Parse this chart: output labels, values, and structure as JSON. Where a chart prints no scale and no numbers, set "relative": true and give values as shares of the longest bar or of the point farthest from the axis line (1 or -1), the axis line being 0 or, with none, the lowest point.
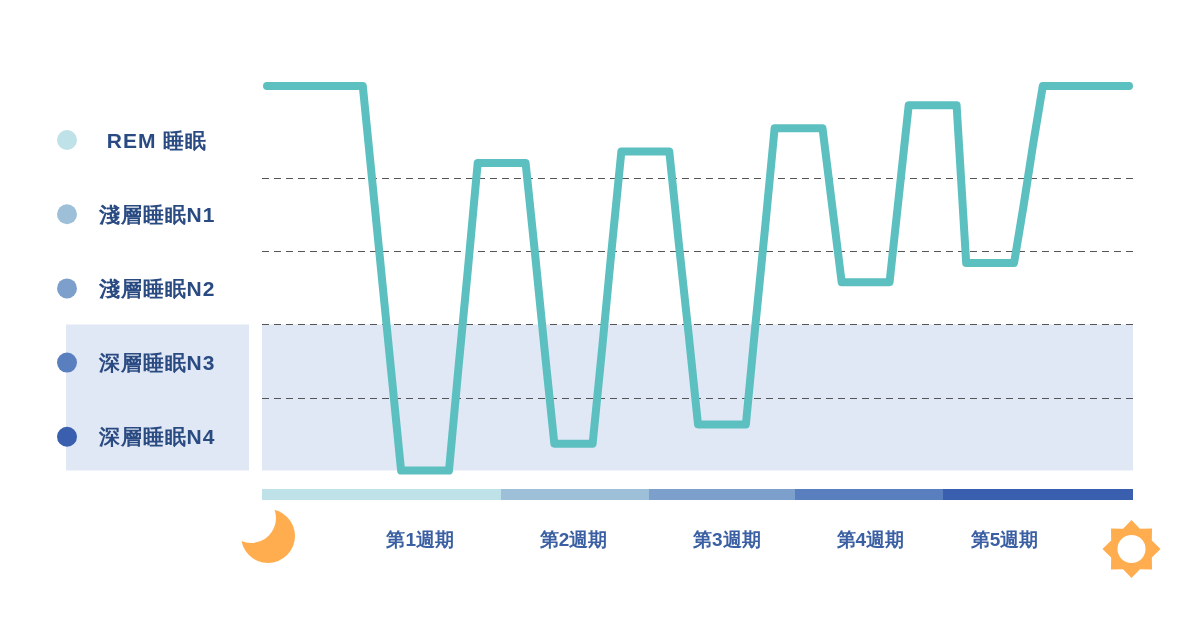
{
  "chart_data": {
    "type": "line",
    "relative": true,
    "categories": [
      null,
      null,
      null,
      null,
      null,
      null,
      null,
      null,
      null,
      null,
      null,
      null,
      null,
      null,
      null,
      null,
      "第1週期",
      null,
      null,
      null,
      null,
      null,
      null,
      null,
      null,
      null,
      null,
      null,
      null,
      null,
      null,
      null,
      "第2週期",
      null,
      null,
      null,
      null,
      null,
      null,
      null,
      null,
      null,
      null,
      null,
      null,
      null,
      null,
      null,
      "第3週期",
      null,
      null,
      null,
      null,
      null,
      null,
      null,
      null,
      null,
      null,
      null,
      null,
      null,
      null,
      "第4週期",
      null,
      null,
      null,
      null,
      null,
      null,
      null,
      null,
      null,
      null,
      null,
      null,
      null,
      "第5週期",
      null,
      null,
      null,
      null,
      null,
      null,
      null,
      null,
      null,
      null,
      null,
      null,
      null
    ],
    "series": [
      {
        "color": "#5cbfc0",
        "values": [
          1,
          1,
          1,
          1,
          1,
          1,
          1,
          1,
          1,
          1,
          1,
          0.75,
          0.5,
          0.25,
          0,
          0,
          0,
          0,
          0,
          0,
          0.27,
          0.53,
          0.8,
          0.8,
          0.8,
          0.8,
          0.8,
          0.8,
          0.56,
          0.31,
          0.07,
          0.07,
          0.07,
          0.07,
          0.07,
          0.32,
          0.58,
          0.83,
          0.83,
          0.83,
          0.83,
          0.83,
          0.83,
          0.59,
          0.36,
          0.12,
          0.12,
          0.12,
          0.12,
          0.12,
          0.12,
          0.38,
          0.63,
          0.89,
          0.89,
          0.89,
          0.89,
          0.89,
          0.89,
          0.69,
          0.49,
          0.49,
          0.49,
          0.49,
          0.49,
          0.49,
          0.72,
          0.95,
          0.95,
          0.95,
          0.95,
          0.95,
          0.95,
          0.54,
          0.54,
          0.54,
          0.54,
          0.54,
          0.54,
          0.69,
          0.85,
          1,
          1,
          1,
          1,
          1,
          1,
          1,
          1,
          1,
          1
        ]
      }
    ],
    "annotations": [
      "REM 睡眠",
      "淺層睡眠N1",
      "淺層睡眠N2",
      "深層睡眠N3",
      "深層睡眠N4"
    ],
    "ref_lines": [
      {
        "axis": "y",
        "value": 0.19,
        "color": "#555555",
        "line_style": "dashed"
      },
      {
        "axis": "y",
        "value": 0.38,
        "color": "#555555",
        "line_style": "dashed"
      },
      {
        "axis": "y",
        "value": 0.57,
        "color": "#555555",
        "line_style": "dashed"
      },
      {
        "axis": "y",
        "value": 0.76,
        "color": "#555555",
        "line_style": "dashed"
      }
    ],
    "bands": [
      {
        "axis": "y",
        "from": 0,
        "to": 0.38,
        "color": "#e1e8f5"
      }
    ],
    "line_style": "solid"
  }
}
